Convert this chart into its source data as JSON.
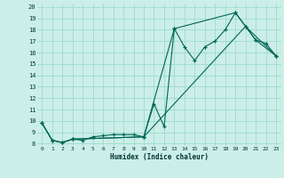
{
  "xlabel": "Humidex (Indice chaleur)",
  "bg_color": "#cceee8",
  "grid_color": "#99ddcc",
  "line_color": "#006655",
  "xlim": [
    -0.5,
    23.5
  ],
  "ylim": [
    7.8,
    20.3
  ],
  "yticks": [
    8,
    9,
    10,
    11,
    12,
    13,
    14,
    15,
    16,
    17,
    18,
    19,
    20
  ],
  "xticks": [
    0,
    1,
    2,
    3,
    4,
    5,
    6,
    7,
    8,
    9,
    10,
    11,
    12,
    13,
    14,
    15,
    16,
    17,
    18,
    19,
    20,
    21,
    22,
    23
  ],
  "series1_x": [
    0,
    1,
    2,
    3,
    4,
    5,
    6,
    7,
    8,
    9,
    10,
    11,
    12,
    13,
    14,
    15,
    16,
    17,
    18,
    19,
    20,
    21,
    22,
    23
  ],
  "series1_y": [
    9.8,
    8.3,
    8.1,
    8.4,
    8.3,
    8.6,
    8.7,
    8.8,
    8.8,
    8.8,
    8.6,
    11.5,
    9.5,
    18.1,
    16.5,
    15.3,
    16.5,
    17.0,
    18.0,
    19.5,
    18.3,
    17.1,
    16.8,
    15.7
  ],
  "series2_x": [
    0,
    1,
    2,
    3,
    10,
    20,
    23
  ],
  "series2_y": [
    9.8,
    8.3,
    8.1,
    8.4,
    8.6,
    18.3,
    15.7
  ],
  "series3_x": [
    0,
    1,
    2,
    3,
    10,
    13,
    19,
    21,
    23
  ],
  "series3_y": [
    9.8,
    8.3,
    8.1,
    8.4,
    8.6,
    18.1,
    19.5,
    17.1,
    15.7
  ]
}
